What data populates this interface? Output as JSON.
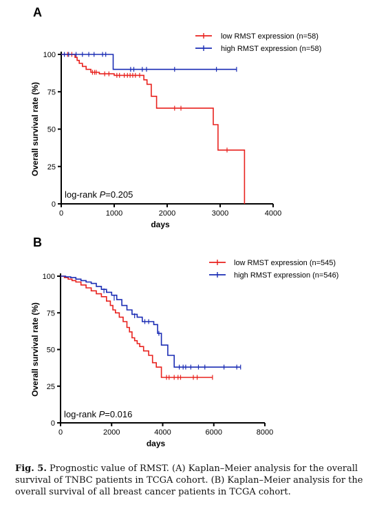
{
  "figure": {
    "caption_label": "Fig. 5.",
    "caption_text": "Prognostic value of RMST. (A) Kaplan–Meier analysis for the overall survival of TNBC patients in TCGA cohort. (B) Kaplan–Meier analysis for the overall survival of all breast cancer patients in TCGA cohort."
  },
  "chart_data": [
    {
      "panel": "A",
      "type": "line",
      "xlabel": "days",
      "ylabel": "Overall survival rate (%)",
      "xlim": [
        0,
        4000
      ],
      "ylim": [
        0,
        100
      ],
      "xticks": [
        0,
        1000,
        2000,
        3000,
        4000
      ],
      "yticks": [
        0,
        25,
        50,
        75,
        100
      ],
      "legend_position": "top-right",
      "annotation": {
        "prefix": "log-rank ",
        "italic": "P",
        "suffix": "=0.205"
      },
      "series": [
        {
          "name": "low RMST expression (n=58)",
          "color": "#e8211d",
          "steps": [
            [
              0,
              100
            ],
            [
              230,
              100
            ],
            [
              260,
              98
            ],
            [
              300,
              96
            ],
            [
              340,
              94
            ],
            [
              400,
              92
            ],
            [
              470,
              90
            ],
            [
              560,
              88
            ],
            [
              720,
              87
            ],
            [
              1000,
              86
            ],
            [
              1560,
              86
            ],
            [
              1560,
              83
            ],
            [
              1620,
              80
            ],
            [
              1700,
              80
            ],
            [
              1700,
              72
            ],
            [
              1800,
              72
            ],
            [
              1800,
              64
            ],
            [
              2870,
              64
            ],
            [
              2870,
              53
            ],
            [
              2960,
              53
            ],
            [
              2960,
              36
            ],
            [
              3460,
              36
            ],
            [
              3460,
              0
            ]
          ],
          "censors": [
            [
              120,
              100
            ],
            [
              200,
              100
            ],
            [
              590,
              88
            ],
            [
              630,
              88
            ],
            [
              660,
              88
            ],
            [
              820,
              87
            ],
            [
              900,
              87
            ],
            [
              1050,
              86
            ],
            [
              1100,
              86
            ],
            [
              1190,
              86
            ],
            [
              1250,
              86
            ],
            [
              1300,
              86
            ],
            [
              1350,
              86
            ],
            [
              1400,
              86
            ],
            [
              1480,
              86
            ],
            [
              2140,
              64
            ],
            [
              2260,
              64
            ],
            [
              3130,
              36
            ]
          ]
        },
        {
          "name": "high RMST expression (n=58)",
          "color": "#1a2cb4",
          "steps": [
            [
              0,
              100
            ],
            [
              980,
              100
            ],
            [
              980,
              90
            ],
            [
              3310,
              90
            ]
          ],
          "censors": [
            [
              60,
              100
            ],
            [
              140,
              100
            ],
            [
              280,
              100
            ],
            [
              400,
              100
            ],
            [
              520,
              100
            ],
            [
              620,
              100
            ],
            [
              780,
              100
            ],
            [
              840,
              100
            ],
            [
              1310,
              90
            ],
            [
              1370,
              90
            ],
            [
              1530,
              90
            ],
            [
              1610,
              90
            ],
            [
              2140,
              90
            ],
            [
              2930,
              90
            ],
            [
              3310,
              90
            ]
          ]
        }
      ]
    },
    {
      "panel": "B",
      "type": "line",
      "xlabel": "days",
      "ylabel": "Overall survival rate (%)",
      "xlim": [
        0,
        8000
      ],
      "ylim": [
        0,
        100
      ],
      "xticks": [
        0,
        2000,
        4000,
        6000,
        8000
      ],
      "yticks": [
        0,
        25,
        50,
        75,
        100
      ],
      "legend_position": "top-right",
      "annotation": {
        "prefix": "log-rank ",
        "italic": "P",
        "suffix": "=0.016"
      },
      "series": [
        {
          "name": "low RMST expression (n=545)",
          "color": "#e8211d",
          "steps": [
            [
              0,
              100
            ],
            [
              150,
              99
            ],
            [
              300,
              98
            ],
            [
              450,
              97
            ],
            [
              600,
              96
            ],
            [
              800,
              94
            ],
            [
              1000,
              92
            ],
            [
              1200,
              90
            ],
            [
              1400,
              88
            ],
            [
              1600,
              86
            ],
            [
              1800,
              83
            ],
            [
              1950,
              80
            ],
            [
              2050,
              77
            ],
            [
              2150,
              75
            ],
            [
              2300,
              72
            ],
            [
              2450,
              69
            ],
            [
              2600,
              65
            ],
            [
              2700,
              62
            ],
            [
              2800,
              58
            ],
            [
              2900,
              56
            ],
            [
              3000,
              54
            ],
            [
              3100,
              52
            ],
            [
              3250,
              49
            ],
            [
              3450,
              46
            ],
            [
              3600,
              41
            ],
            [
              3750,
              38
            ],
            [
              3950,
              38
            ],
            [
              3950,
              31
            ],
            [
              5950,
              31
            ]
          ],
          "censors": [
            [
              4150,
              31
            ],
            [
              4250,
              31
            ],
            [
              4450,
              31
            ],
            [
              4600,
              31
            ],
            [
              4700,
              31
            ],
            [
              5200,
              31
            ],
            [
              5350,
              31
            ],
            [
              5950,
              31
            ]
          ]
        },
        {
          "name": "high RMST expression (n=546)",
          "color": "#1a2cb4",
          "steps": [
            [
              0,
              100
            ],
            [
              200,
              99.5
            ],
            [
              400,
              99
            ],
            [
              600,
              98
            ],
            [
              800,
              97
            ],
            [
              1000,
              96
            ],
            [
              1200,
              95
            ],
            [
              1400,
              93
            ],
            [
              1600,
              91
            ],
            [
              1800,
              89
            ],
            [
              2000,
              87
            ],
            [
              2200,
              84
            ],
            [
              2400,
              80
            ],
            [
              2600,
              77
            ],
            [
              2800,
              74
            ],
            [
              3000,
              72
            ],
            [
              3200,
              69
            ],
            [
              3500,
              69
            ],
            [
              3650,
              67
            ],
            [
              3800,
              61
            ],
            [
              3950,
              61
            ],
            [
              3950,
              53
            ],
            [
              4200,
              53
            ],
            [
              4200,
              46
            ],
            [
              4450,
              46
            ],
            [
              4450,
              38
            ],
            [
              7050,
              38
            ]
          ],
          "censors": [
            [
              1700,
              90
            ],
            [
              2100,
              85
            ],
            [
              2900,
              73
            ],
            [
              3300,
              69
            ],
            [
              3450,
              69
            ],
            [
              3850,
              61
            ],
            [
              4650,
              38
            ],
            [
              4800,
              38
            ],
            [
              4900,
              38
            ],
            [
              5100,
              38
            ],
            [
              5400,
              38
            ],
            [
              5650,
              38
            ],
            [
              6400,
              38
            ],
            [
              6900,
              38
            ],
            [
              7050,
              38
            ]
          ]
        }
      ]
    }
  ]
}
